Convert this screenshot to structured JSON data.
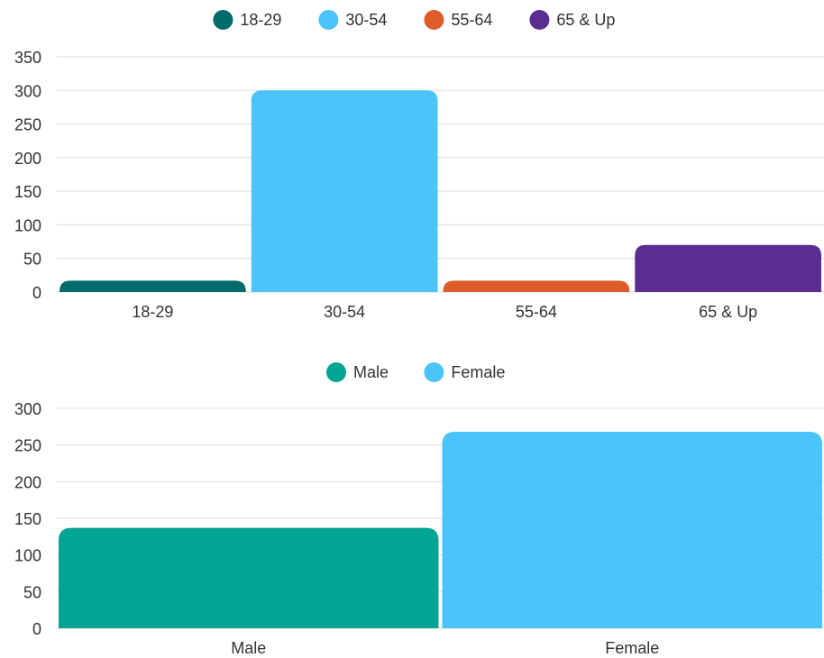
{
  "chart_data": [
    {
      "type": "bar",
      "categories": [
        "18-29",
        "30-54",
        "55-64",
        "65 & Up"
      ],
      "values": [
        17,
        300,
        17,
        70
      ],
      "legend": [
        "18-29",
        "30-54",
        "55-64",
        "65 & Up"
      ],
      "colors": [
        "#006b6b",
        "#4bc4fa",
        "#de5b2a",
        "#5b2d91"
      ],
      "ylim": [
        0,
        350
      ],
      "yticks": [
        "0",
        "50",
        "100",
        "150",
        "200",
        "250",
        "300",
        "350"
      ],
      "grid": true,
      "legend_position": "top-center"
    },
    {
      "type": "bar",
      "categories": [
        "Male",
        "Female"
      ],
      "values": [
        137,
        268
      ],
      "legend": [
        "Male",
        "Female"
      ],
      "colors": [
        "#03a493",
        "#4bc4fa"
      ],
      "ylim": [
        0,
        300
      ],
      "yticks": [
        "0",
        "50",
        "100",
        "150",
        "200",
        "250",
        "300"
      ],
      "grid": true,
      "legend_position": "top-center"
    }
  ]
}
